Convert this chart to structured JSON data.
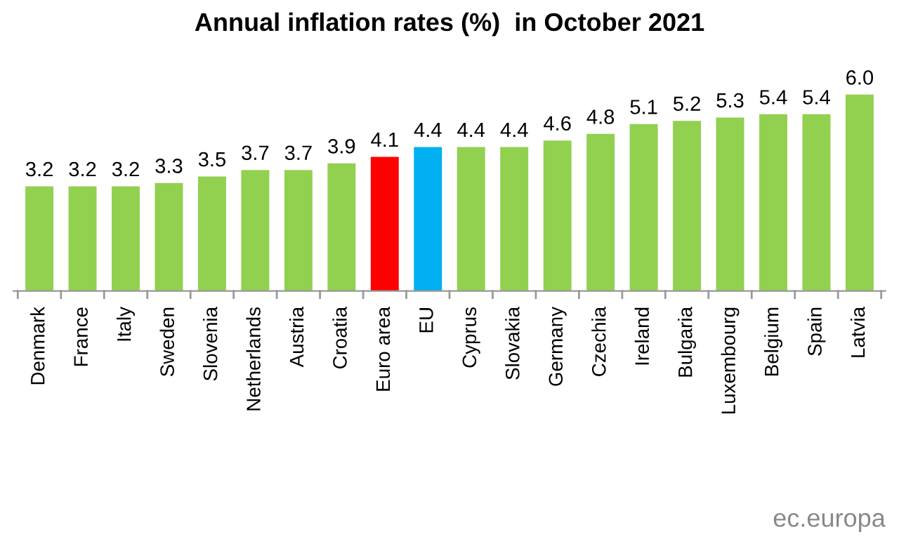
{
  "chart_data": {
    "type": "bar",
    "title": "Annual inflation rates (%)  in October 2021",
    "categories": [
      "Denmark",
      "France",
      "Italy",
      "Sweden",
      "Slovenia",
      "Netherlands",
      "Austria",
      "Croatia",
      "Euro area",
      "EU",
      "Cyprus",
      "Slovakia",
      "Germany",
      "Czechia",
      "Ireland",
      "Bulgaria",
      "Luxembourg",
      "Belgium",
      "Spain",
      "Latvia"
    ],
    "values": [
      3.2,
      3.2,
      3.2,
      3.3,
      3.5,
      3.7,
      3.7,
      3.9,
      4.1,
      4.4,
      4.4,
      4.4,
      4.6,
      4.8,
      5.1,
      5.2,
      5.3,
      5.4,
      5.4,
      6.0
    ],
    "colors": [
      "#92d050",
      "#92d050",
      "#92d050",
      "#92d050",
      "#92d050",
      "#92d050",
      "#92d050",
      "#92d050",
      "#ff0000",
      "#00b0f0",
      "#92d050",
      "#92d050",
      "#92d050",
      "#92d050",
      "#92d050",
      "#92d050",
      "#92d050",
      "#92d050",
      "#92d050",
      "#92d050"
    ],
    "value_labels": [
      "3.2",
      "3.2",
      "3.2",
      "3.3",
      "3.5",
      "3.7",
      "3.7",
      "3.9",
      "4.1",
      "4.4",
      "4.4",
      "4.4",
      "4.6",
      "4.8",
      "5.1",
      "5.2",
      "5.3",
      "5.4",
      "5.4",
      "6.0"
    ],
    "annotations": [
      "ec.europa"
    ],
    "grid": false,
    "legend": false
  }
}
